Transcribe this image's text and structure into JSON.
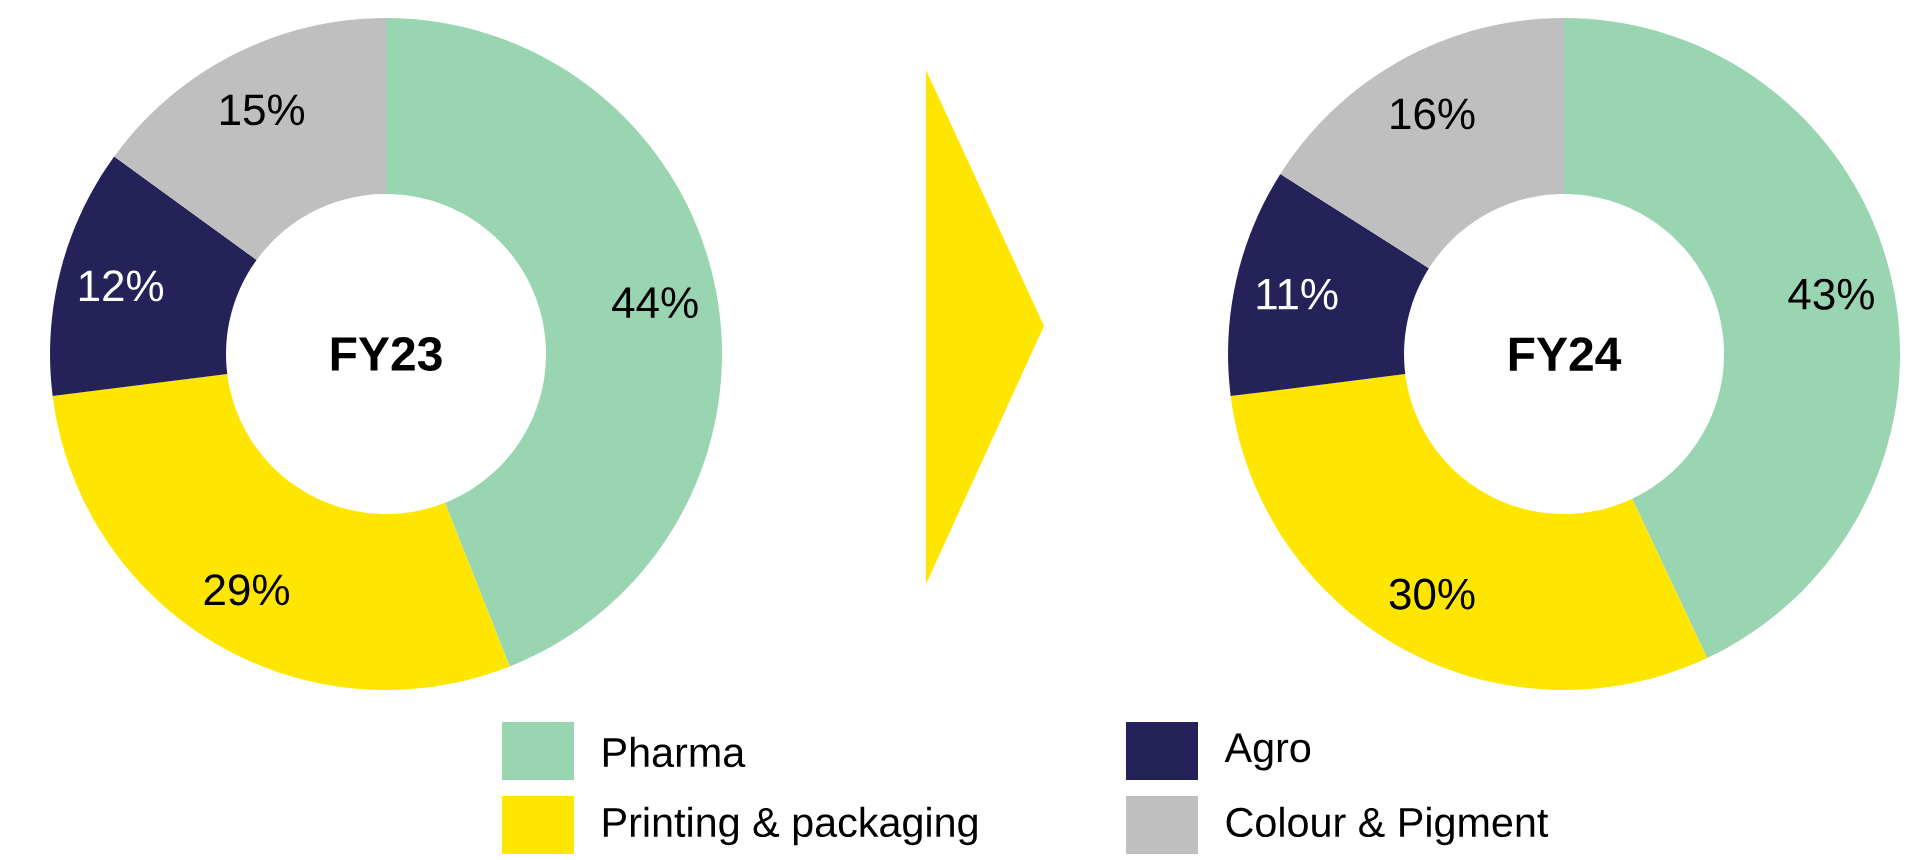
{
  "chart_data": [
    {
      "type": "donut",
      "title": "FY23",
      "categories": [
        "Pharma",
        "Printing & packaging",
        "Agro",
        "Colour & Pigment"
      ],
      "values": [
        44,
        29,
        12,
        15
      ],
      "value_labels": [
        "44%",
        "29%",
        "12%",
        "15%"
      ],
      "colors": [
        "#99d5b0",
        "#ffe600",
        "#252159",
        "#bfbfbf"
      ],
      "legend": "bottom"
    },
    {
      "type": "donut",
      "title": "FY24",
      "categories": [
        null,
        null,
        null,
        null
      ],
      "values": [
        43,
        30,
        11,
        16
      ],
      "value_labels": [
        "43%",
        "30%",
        "11%",
        "16%"
      ],
      "colors": [
        "#99d5b0",
        "#ffe600",
        "#252159",
        "#bfbfbf"
      ]
    }
  ]
}
